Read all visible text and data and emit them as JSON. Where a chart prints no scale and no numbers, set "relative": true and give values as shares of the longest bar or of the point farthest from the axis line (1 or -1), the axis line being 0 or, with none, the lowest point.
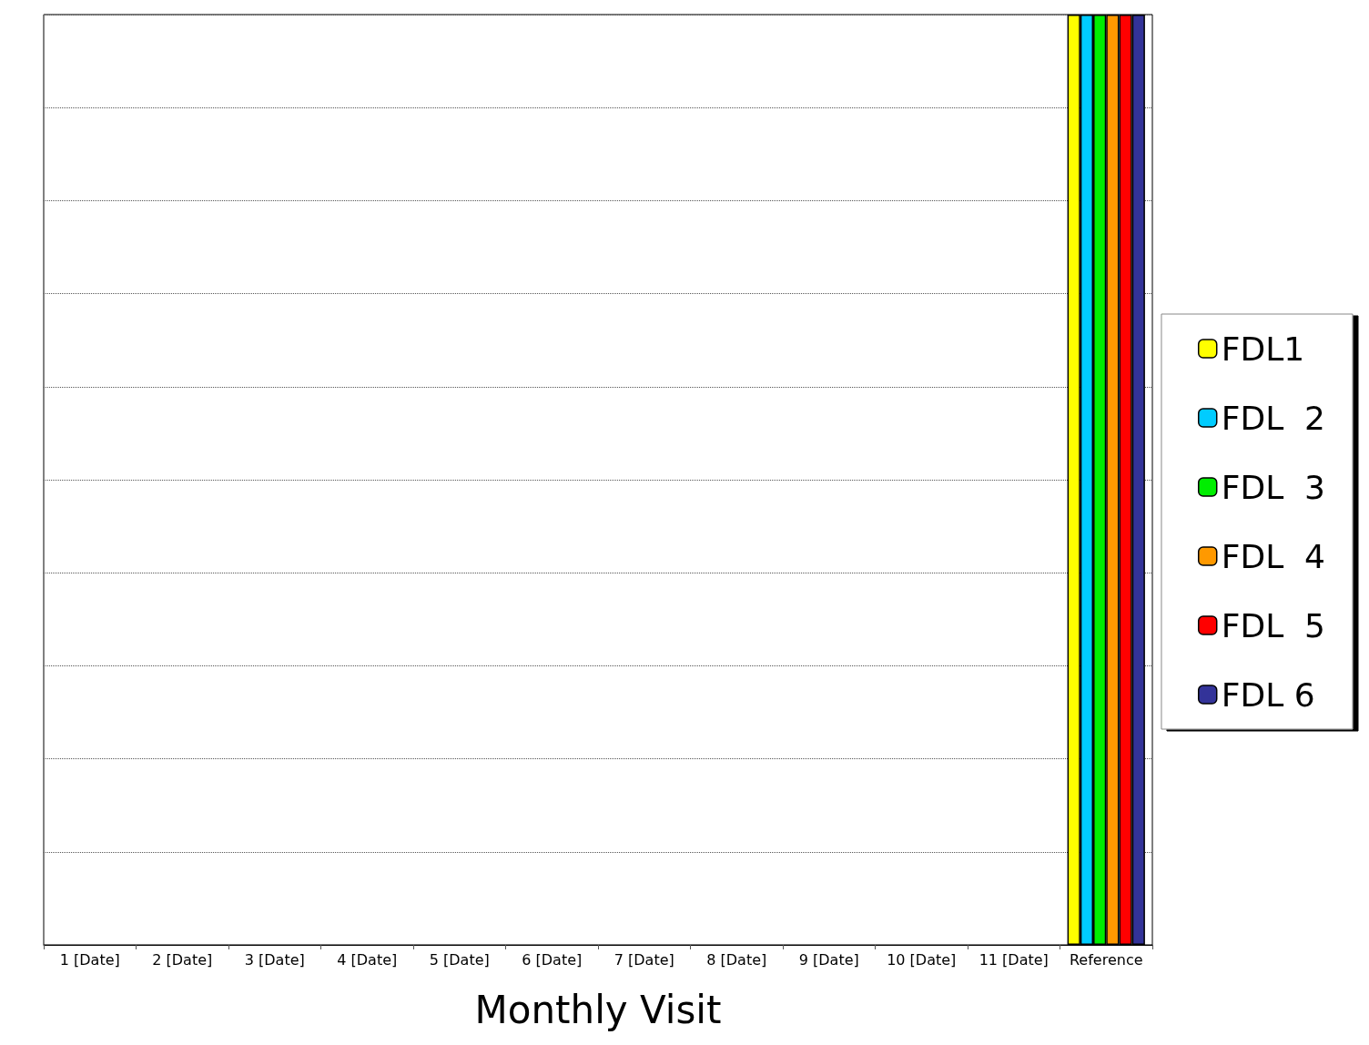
{
  "chart_data": {
    "type": "bar",
    "xlabel": "Monthly Visit",
    "relative": true,
    "grid": "y",
    "legend": "right",
    "categories": [
      "1 [Date]",
      "2 [Date]",
      "3 [Date]",
      "4 [Date]",
      "5 [Date]",
      "6 [Date]",
      "7 [Date]",
      "8 [Date]",
      "9 [Date]",
      "10 [Date]",
      "11 [Date]",
      "Reference"
    ],
    "series": [
      {
        "name": "FDL1",
        "color": "#ffff00",
        "values": [
          null,
          null,
          null,
          null,
          null,
          null,
          null,
          null,
          null,
          null,
          null,
          1
        ]
      },
      {
        "name": "FDL  2",
        "color": "#00ccff",
        "values": [
          null,
          null,
          null,
          null,
          null,
          null,
          null,
          null,
          null,
          null,
          null,
          1
        ]
      },
      {
        "name": "FDL  3",
        "color": "#00ee00",
        "values": [
          null,
          null,
          null,
          null,
          null,
          null,
          null,
          null,
          null,
          null,
          null,
          1
        ]
      },
      {
        "name": "FDL  4",
        "color": "#ff9900",
        "values": [
          null,
          null,
          null,
          null,
          null,
          null,
          null,
          null,
          null,
          null,
          null,
          1
        ]
      },
      {
        "name": "FDL  5",
        "color": "#ff0000",
        "values": [
          null,
          null,
          null,
          null,
          null,
          null,
          null,
          null,
          null,
          null,
          null,
          1
        ]
      },
      {
        "name": "FDL 6",
        "color": "#333399",
        "values": [
          null,
          null,
          null,
          null,
          null,
          null,
          null,
          null,
          null,
          null,
          null,
          1
        ]
      }
    ]
  }
}
